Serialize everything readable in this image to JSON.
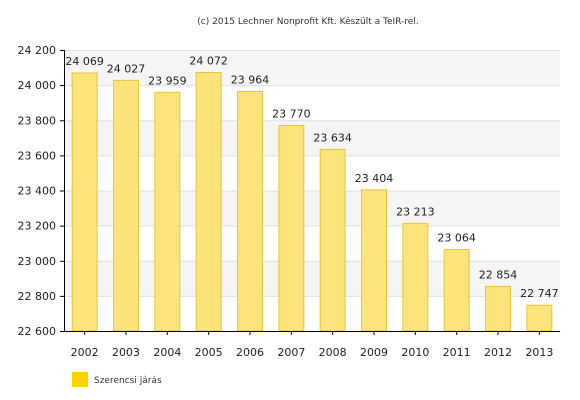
{
  "credit": "(c) 2015 Lechner Nonprofit Kft. Készült a TeIR-rel.",
  "colors": {
    "bar_fill": "#FCE47A",
    "bar_stroke": "#E8C53A",
    "legend_swatch": "#FFD400",
    "band_fill": "#F5F5F5",
    "grid_line": "#E0E0E0",
    "axis_line": "#000000"
  },
  "chart_data": {
    "type": "bar",
    "categories": [
      "2002",
      "2003",
      "2004",
      "2005",
      "2006",
      "2007",
      "2008",
      "2009",
      "2010",
      "2011",
      "2012",
      "2013"
    ],
    "series": [
      {
        "name": "Szerencsi járás",
        "values": [
          24069,
          24027,
          23959,
          24072,
          23964,
          23770,
          23634,
          23404,
          23213,
          23064,
          22854,
          22747
        ],
        "labels": [
          "24 069",
          "24 027",
          "23 959",
          "24 072",
          "23 964",
          "23 770",
          "23 634",
          "23 404",
          "23 213",
          "23 064",
          "22 854",
          "22 747"
        ]
      }
    ],
    "ylim": [
      22600,
      24200
    ],
    "y_ticks": [
      22600,
      22800,
      23000,
      23200,
      23400,
      23600,
      23800,
      24000,
      24200
    ],
    "y_tick_labels": [
      "22 600",
      "22 800",
      "23 000",
      "23 200",
      "23 400",
      "23 600",
      "23 800",
      "24 000",
      "24 200"
    ],
    "grid": true,
    "legend_position": "bottom-left"
  }
}
